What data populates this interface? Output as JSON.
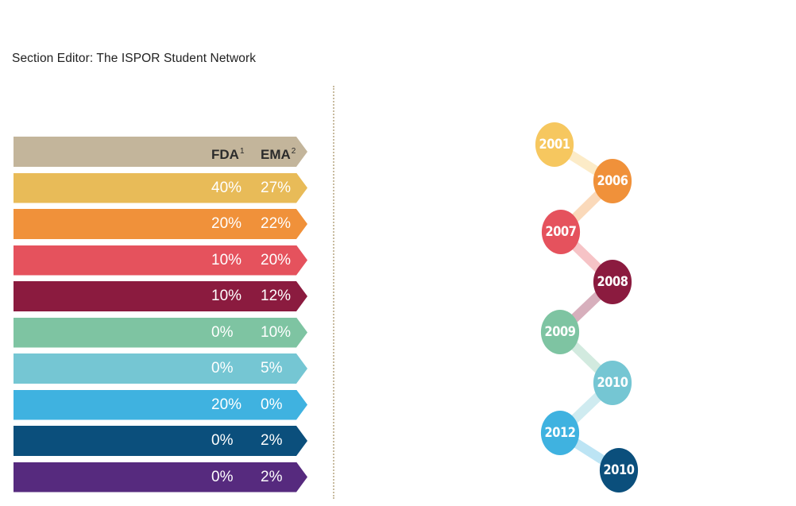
{
  "section_editor": "Section Editor: The ISPOR Student Network",
  "table": {
    "header": {
      "fda": "FDA",
      "fda_note": "1",
      "ema": "EMA",
      "ema_note": "2",
      "color": "#c3b59b"
    },
    "rows": [
      {
        "fda": "40%",
        "ema": "27%",
        "color": "#e8bb58"
      },
      {
        "fda": "20%",
        "ema": "22%",
        "color": "#f0913a"
      },
      {
        "fda": "10%",
        "ema": "20%",
        "color": "#e5525d"
      },
      {
        "fda": "10%",
        "ema": "12%",
        "color": "#8b1b3f"
      },
      {
        "fda": "0%",
        "ema": "10%",
        "color": "#7ec4a2"
      },
      {
        "fda": "0%",
        "ema": "5%",
        "color": "#75c6d3"
      },
      {
        "fda": "20%",
        "ema": "0%",
        "color": "#3fb2e0"
      },
      {
        "fda": "0%",
        "ema": "2%",
        "color": "#0b4f7c"
      },
      {
        "fda": "0%",
        "ema": "2%",
        "color": "#562a7e"
      }
    ]
  },
  "timeline": [
    {
      "year": "2001",
      "color": "#f6c75f"
    },
    {
      "year": "2006",
      "color": "#f0913a"
    },
    {
      "year": "2007",
      "color": "#e5525d"
    },
    {
      "year": "2008",
      "color": "#8b1b3f"
    },
    {
      "year": "2009",
      "color": "#7ec4a2"
    },
    {
      "year": "2010",
      "color": "#75c6d3"
    },
    {
      "year": "2012",
      "color": "#3fb2e0"
    },
    {
      "year": "2010",
      "color": "#0b4f7c"
    }
  ]
}
